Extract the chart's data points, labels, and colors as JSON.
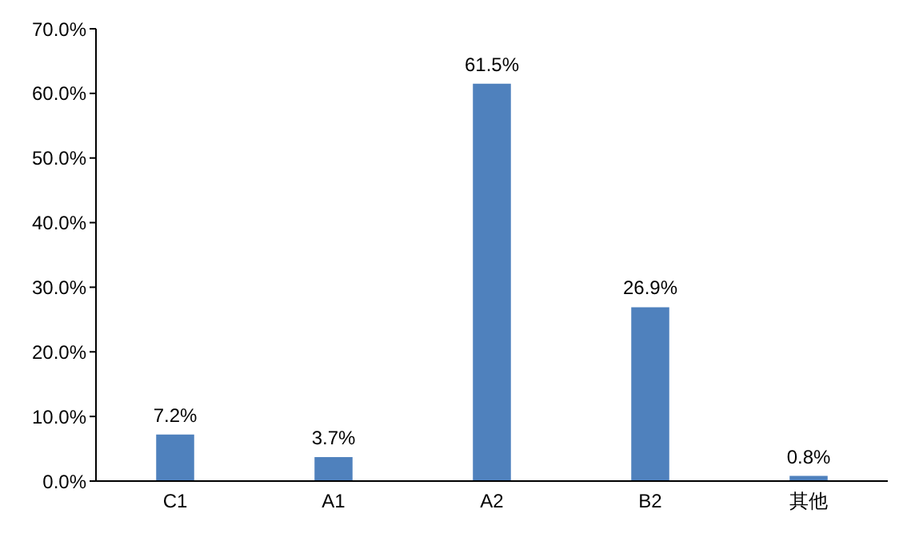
{
  "chart_data": {
    "type": "bar",
    "categories": [
      "C1",
      "A1",
      "A2",
      "B2",
      "其他"
    ],
    "values": [
      7.2,
      3.7,
      61.5,
      26.9,
      0.8
    ],
    "value_labels": [
      "7.2%",
      "3.7%",
      "61.5%",
      "26.9%",
      "0.8%"
    ],
    "color": "#4f81bd",
    "ylim": [
      0,
      70
    ],
    "yticks": [
      {
        "value": 0,
        "label": "0.0%"
      },
      {
        "value": 10,
        "label": "10.0%"
      },
      {
        "value": 20,
        "label": "20.0%"
      },
      {
        "value": 30,
        "label": "30.0%"
      },
      {
        "value": 40,
        "label": "40.0%"
      },
      {
        "value": 50,
        "label": "50.0%"
      },
      {
        "value": 60,
        "label": "60.0%"
      },
      {
        "value": 70,
        "label": "70.0%"
      }
    ],
    "grid": false,
    "legend": false
  }
}
